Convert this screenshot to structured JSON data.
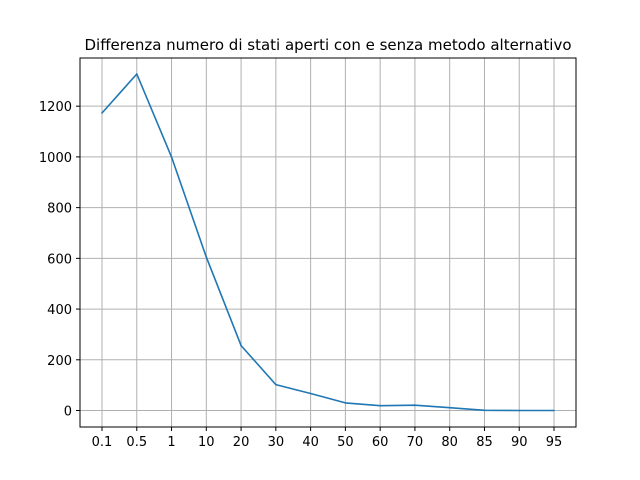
{
  "chart_data": {
    "type": "line",
    "title": "Differenza numero di stati aperti con e senza metodo alternativo",
    "xlabel": "",
    "ylabel": "",
    "categories": [
      "0.1",
      "0.5",
      "1",
      "10",
      "20",
      "30",
      "40",
      "50",
      "60",
      "70",
      "80",
      "85",
      "90",
      "95"
    ],
    "series": [
      {
        "values": [
          1173,
          1327,
          1000,
          605,
          256,
          102,
          67,
          30,
          19,
          21,
          11,
          1,
          0,
          0
        ]
      }
    ],
    "ylim": [
      -65,
      1390
    ],
    "yticks": [
      0,
      200,
      400,
      600,
      800,
      1000,
      1200
    ],
    "grid": true,
    "legend": "none",
    "colors": {
      "line": "#1f77b4",
      "grid": "#b0b0b0",
      "axis": "#000000"
    }
  }
}
